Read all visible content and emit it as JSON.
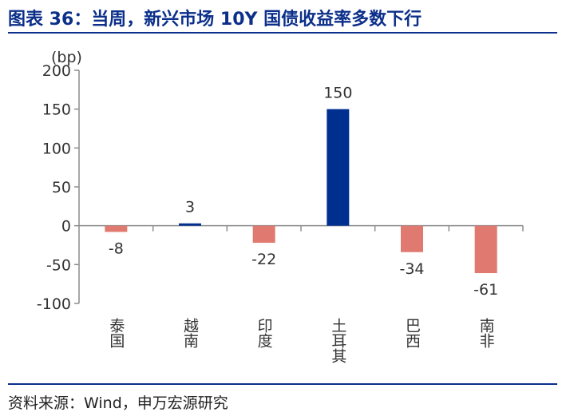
{
  "header": {
    "title": "图表 36：当周，新兴市场 10Y 国债收益率多数下行"
  },
  "footer": {
    "source": "资料来源：Wind，申万宏源研究"
  },
  "chart_data": {
    "type": "bar",
    "ylabel": "(bp)",
    "ylim": [
      -100,
      200
    ],
    "yticks": [
      200,
      150,
      100,
      50,
      0,
      -50,
      -100
    ],
    "categories": [
      "泰国",
      "越南",
      "印度",
      "土耳其",
      "巴西",
      "南非"
    ],
    "values": [
      -8,
      3,
      -22,
      150,
      -34,
      -61
    ],
    "colors": {
      "positive": "#00308f",
      "negative": "#e07a70",
      "axis": "#8c8c8c"
    },
    "grid": false,
    "legend": "none"
  }
}
